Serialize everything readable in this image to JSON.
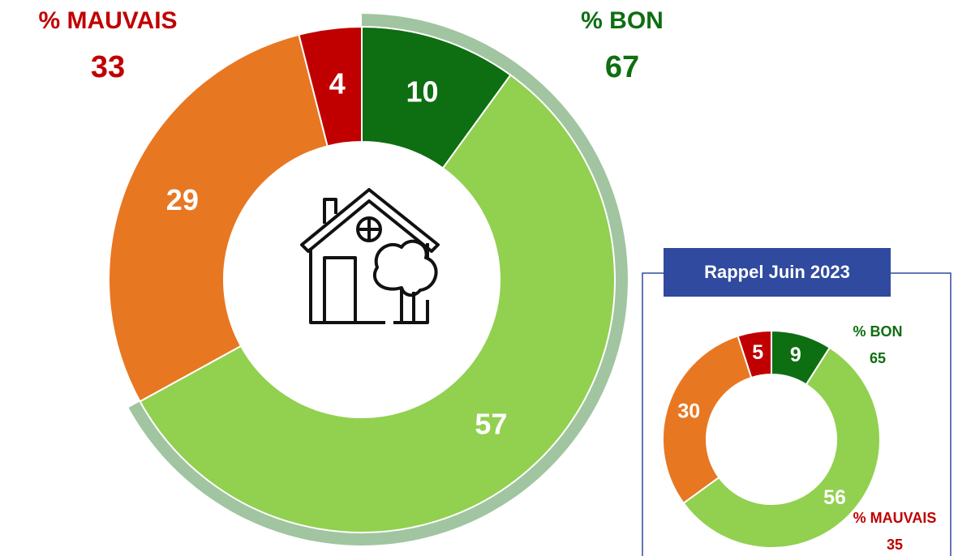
{
  "chart_data": [
    {
      "type": "pie",
      "values": [
        10,
        57,
        29,
        4
      ],
      "colors": [
        "#0e6e12",
        "#92d050",
        "#e87722",
        "#c00000"
      ],
      "annotations": [
        {
          "text": "% MAUVAIS",
          "value": 33
        },
        {
          "text": "% BON",
          "value": 67
        }
      ]
    },
    {
      "type": "pie",
      "title": "Rappel Juin 2023",
      "values": [
        9,
        56,
        30,
        5
      ],
      "colors": [
        "#0e6e12",
        "#92d050",
        "#e87722",
        "#c00000"
      ],
      "annotations": [
        {
          "text": "% BON",
          "value": 65
        },
        {
          "text": "% MAUVAIS",
          "value": 35
        }
      ]
    }
  ]
}
